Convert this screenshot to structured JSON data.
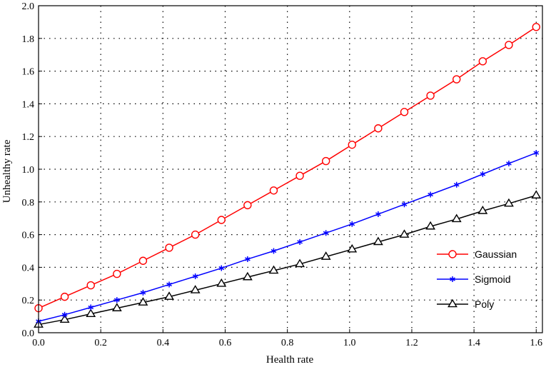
{
  "chart_data": {
    "type": "line",
    "xlabel": "Health rate",
    "ylabel": "Unhealthy rate",
    "xlim": [
      0,
      1.62
    ],
    "ylim": [
      0,
      2.0
    ],
    "xticks": [
      "0.0",
      "0.2",
      "0.4",
      "0.6",
      "0.8",
      "1.0",
      "1.2",
      "1.4",
      "1.6"
    ],
    "yticks": [
      "0.0",
      "0.2",
      "0.4",
      "0.6",
      "0.8",
      "1.0",
      "1.2",
      "1.4",
      "1.6",
      "1.8",
      "2.0"
    ],
    "grid": true,
    "legend_position": "bottom-right",
    "x": [
      0,
      0.084,
      0.168,
      0.252,
      0.336,
      0.42,
      0.504,
      0.588,
      0.672,
      0.756,
      0.84,
      0.924,
      1.008,
      1.092,
      1.176,
      1.26,
      1.344,
      1.428,
      1.512,
      1.6
    ],
    "series": [
      {
        "name": "Gaussian",
        "color": "#ff0000",
        "marker": "circle",
        "values": [
          0.15,
          0.22,
          0.29,
          0.36,
          0.44,
          0.52,
          0.6,
          0.69,
          0.78,
          0.87,
          0.96,
          1.05,
          1.15,
          1.25,
          1.35,
          1.45,
          1.55,
          1.66,
          1.76,
          1.87
        ]
      },
      {
        "name": "Sigmoid",
        "color": "#0000ff",
        "marker": "asterisk",
        "values": [
          0.07,
          0.11,
          0.155,
          0.2,
          0.245,
          0.295,
          0.345,
          0.395,
          0.45,
          0.5,
          0.555,
          0.61,
          0.665,
          0.725,
          0.785,
          0.845,
          0.905,
          0.97,
          1.035,
          1.1
        ]
      },
      {
        "name": "Poly",
        "color": "#000000",
        "marker": "triangle",
        "values": [
          0.05,
          0.08,
          0.115,
          0.15,
          0.185,
          0.22,
          0.26,
          0.3,
          0.34,
          0.38,
          0.42,
          0.465,
          0.51,
          0.555,
          0.6,
          0.65,
          0.695,
          0.745,
          0.79,
          0.84
        ]
      }
    ]
  }
}
